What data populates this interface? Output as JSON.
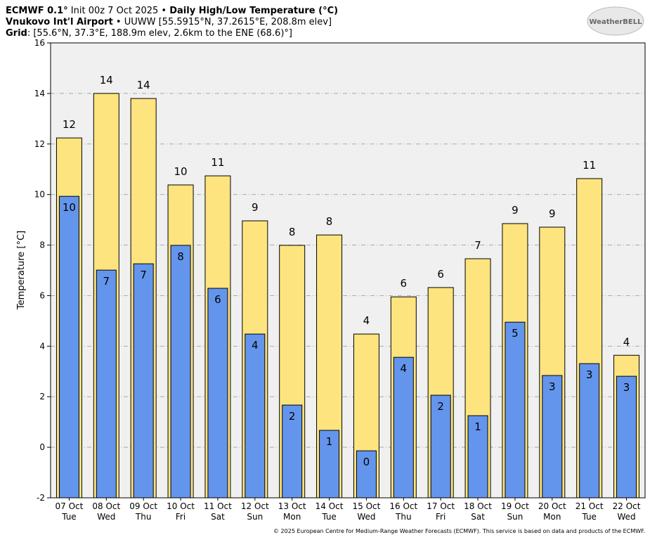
{
  "chart_data": {
    "type": "bar",
    "header_lines": [
      [
        {
          "text": "ECMWF 0.1°",
          "bold": true
        },
        {
          "text": " Init 00z 7 Oct 2025 • "
        },
        {
          "text": "Daily High/Low Temperature (°C)",
          "bold": true
        }
      ],
      [
        {
          "text": "Vnukovo Int'l Airport",
          "bold": true
        },
        {
          "text": " • UUWW [55.5915°N, 37.2615°E, 208.8m elev]"
        }
      ],
      [
        {
          "text": "Grid",
          "bold": true
        },
        {
          "text": ": [55.6°N, 37.3°E, 188.9m elev, 2.6km to the ENE (68.6)°]"
        }
      ]
    ],
    "logo": "WeatherBELL",
    "ylabel": "Temperature [°C]",
    "footer": "© 2025 European Centre for Medium-Range Weather Forecasts (ECMWF). This service is based on data and products of the ECMWF.",
    "categories": [
      "07 Oct",
      "08 Oct",
      "09 Oct",
      "10 Oct",
      "11 Oct",
      "12 Oct",
      "13 Oct",
      "14 Oct",
      "15 Oct",
      "16 Oct",
      "17 Oct",
      "18 Oct",
      "19 Oct",
      "20 Oct",
      "21 Oct",
      "22 Oct"
    ],
    "weekdays": [
      "Tue",
      "Wed",
      "Thu",
      "Fri",
      "Sat",
      "Sun",
      "Mon",
      "Tue",
      "Wed",
      "Thu",
      "Fri",
      "Sat",
      "Sun",
      "Mon",
      "Tue",
      "Wed"
    ],
    "series": [
      {
        "color": "#fde47f",
        "values": [
          12.24,
          14.0,
          13.8,
          10.38,
          10.74,
          8.96,
          7.99,
          8.4,
          4.48,
          5.95,
          6.32,
          7.46,
          8.85,
          8.71,
          10.63,
          3.64
        ],
        "value_labels": [
          "12",
          "14",
          "14",
          "10",
          "11",
          "9",
          "8",
          "8",
          "4",
          "6",
          "6",
          "7",
          "9",
          "9",
          "11",
          "4"
        ]
      },
      {
        "color": "#6495ed",
        "values": [
          9.93,
          7.01,
          7.26,
          7.99,
          6.29,
          4.48,
          1.67,
          0.67,
          -0.14,
          3.56,
          2.06,
          1.25,
          4.95,
          2.84,
          3.31,
          2.81
        ],
        "value_labels": [
          "10",
          "7",
          "7",
          "8",
          "6",
          "4",
          "2",
          "1",
          "0",
          "4",
          "2",
          "1",
          "5",
          "3",
          "3",
          "3"
        ]
      }
    ],
    "ylim": [
      -2,
      16
    ],
    "yticks": [
      -2,
      0,
      2,
      4,
      6,
      8,
      10,
      12,
      14,
      16
    ],
    "grid": true
  }
}
